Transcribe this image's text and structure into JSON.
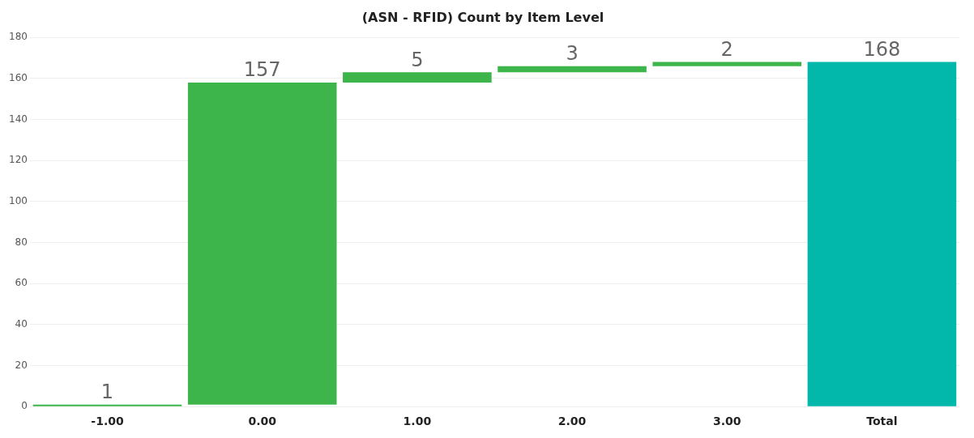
{
  "chart_data": {
    "type": "bar",
    "title": "(ASN - RFID) Count by Item Level",
    "categories": [
      "-1.00",
      "0.00",
      "1.00",
      "2.00",
      "3.00",
      "Total"
    ],
    "values": [
      1,
      157,
      5,
      3,
      2,
      168
    ],
    "base": [
      0,
      1,
      158,
      163,
      166,
      0
    ],
    "colors": [
      "#3db54b",
      "#3db54b",
      "#3db54b",
      "#3db54b",
      "#3db54b",
      "#01b8aa"
    ],
    "ylim": [
      0,
      180
    ],
    "yticks": [
      0,
      20,
      40,
      60,
      80,
      100,
      120,
      140,
      160,
      180
    ],
    "grid": "y",
    "data_labels": true
  }
}
